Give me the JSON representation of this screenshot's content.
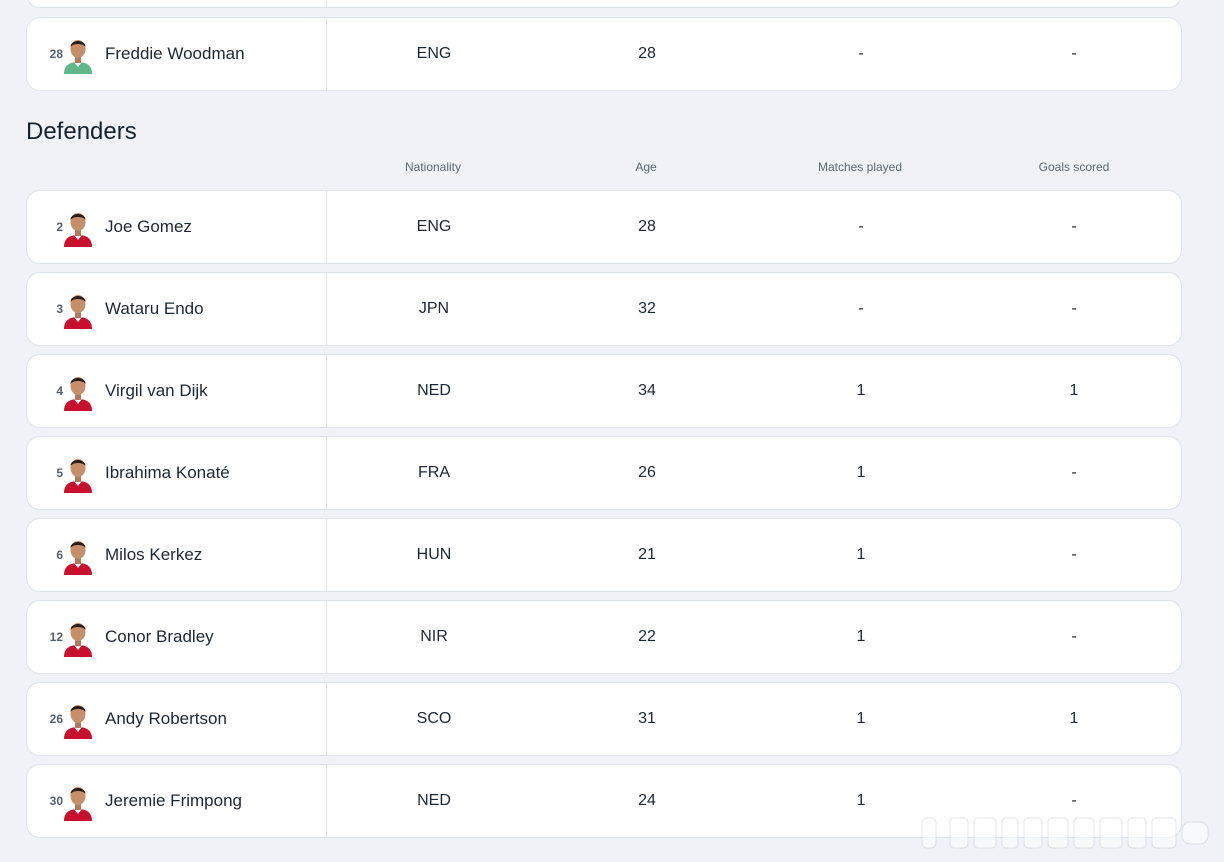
{
  "previous_section": {
    "last_row": {
      "number": "28",
      "name": "Freddie Woodman",
      "nationality": "ENG",
      "age": "28",
      "matches_played": "-",
      "goals_scored": "-",
      "kit": "green"
    }
  },
  "defenders": {
    "title": "Defenders",
    "headers": {
      "nationality": "Nationality",
      "age": "Age",
      "matches_played": "Matches played",
      "goals_scored": "Goals scored"
    },
    "rows": [
      {
        "number": "2",
        "name": "Joe Gomez",
        "nationality": "ENG",
        "age": "28",
        "matches_played": "-",
        "goals_scored": "-",
        "kit": "red"
      },
      {
        "number": "3",
        "name": "Wataru Endo",
        "nationality": "JPN",
        "age": "32",
        "matches_played": "-",
        "goals_scored": "-",
        "kit": "red"
      },
      {
        "number": "4",
        "name": "Virgil van Dijk",
        "nationality": "NED",
        "age": "34",
        "matches_played": "1",
        "goals_scored": "1",
        "kit": "red"
      },
      {
        "number": "5",
        "name": "Ibrahima Konaté",
        "nationality": "FRA",
        "age": "26",
        "matches_played": "1",
        "goals_scored": "-",
        "kit": "red"
      },
      {
        "number": "6",
        "name": "Milos Kerkez",
        "nationality": "HUN",
        "age": "21",
        "matches_played": "1",
        "goals_scored": "-",
        "kit": "red"
      },
      {
        "number": "12",
        "name": "Conor Bradley",
        "nationality": "NIR",
        "age": "22",
        "matches_played": "1",
        "goals_scored": "-",
        "kit": "red"
      },
      {
        "number": "26",
        "name": "Andy Robertson",
        "nationality": "SCO",
        "age": "31",
        "matches_played": "1",
        "goals_scored": "1",
        "kit": "red"
      },
      {
        "number": "30",
        "name": "Jeremie Frimpong",
        "nationality": "NED",
        "age": "24",
        "matches_played": "1",
        "goals_scored": "-",
        "kit": "red"
      }
    ]
  },
  "colors": {
    "background": "#f0f2f7",
    "card": "#ffffff",
    "border": "#dfe3ea",
    "text": "#1d2733",
    "muted": "#5d6772",
    "kit_red": "#c8102e",
    "kit_green": "#5fb88a"
  }
}
